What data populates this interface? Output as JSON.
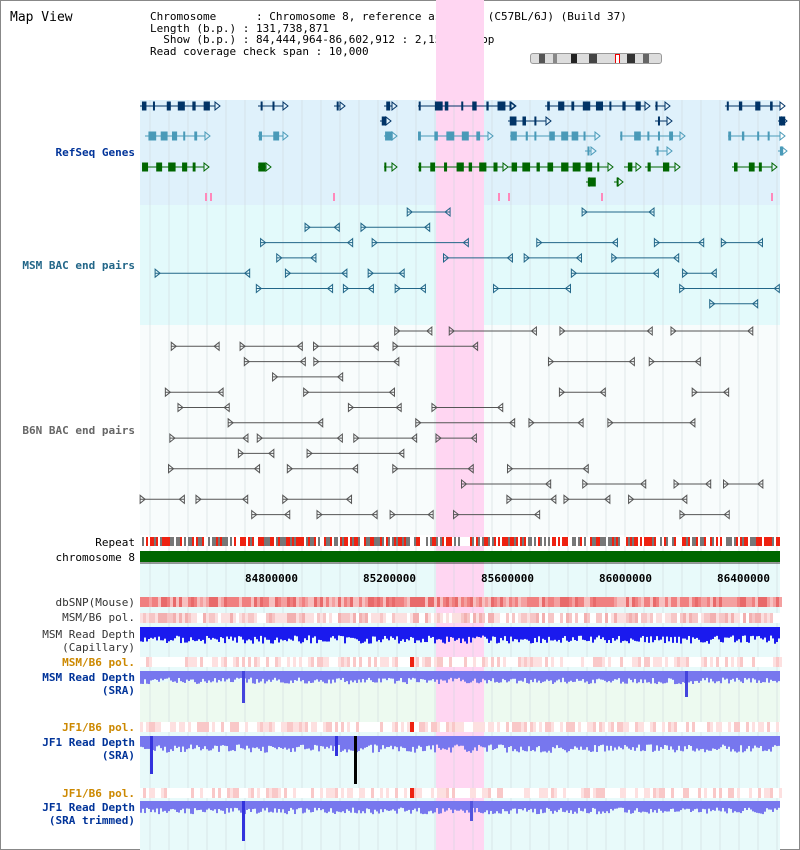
{
  "page": {
    "title": "Map View"
  },
  "info": {
    "chromosome_label": "Chromosome",
    "chromosome_value": "Chromosome 8, reference assembly (C57BL/6J) (Build 37)",
    "length_label": "Length (b.p.)",
    "length_value": "131,738,871",
    "show_label": "Show (b.p.)",
    "show_value": "84,444,964-86,602,912 : 2,157,949 bp",
    "coverage_label": "Read coverage check span",
    "coverage_value": "10,000"
  },
  "tracks": {
    "refseq": "RefSeq Genes",
    "msm_bac": "MSM BAC end pairs",
    "b6n_bac": "B6N BAC end pairs",
    "repeat": "Repeat",
    "chromosome": "chromosome 8",
    "dbsnp": "dbSNP(Mouse)",
    "msm_b6_pol_gray": "MSM/B6 pol.",
    "msm_depth_cap_1": "MSM Read Depth",
    "msm_depth_cap_2": "(Capillary)",
    "msm_b6_pol": "MSM/B6 pol.",
    "msm_depth_sra_1": "MSM Read Depth",
    "msm_depth_sra_2": "(SRA)",
    "jf1_b6_pol_1": "JF1/B6 pol.",
    "jf1_depth_sra_1": "JF1 Read Depth",
    "jf1_depth_sra_2": "(SRA)",
    "jf1_b6_pol_2": "JF1/B6 pol.",
    "jf1_depth_trim_1": "JF1 Read Depth",
    "jf1_depth_trim_2": "(SRA trimmed)"
  },
  "axis": {
    "ticks": [
      "84800000",
      "85200000",
      "85600000",
      "86000000",
      "86400000"
    ]
  },
  "colors": {
    "refseq_navy": "#003366",
    "refseq_teal": "#4a9ab8",
    "refseq_green": "#006600",
    "msm_bac": "#226688",
    "b6n_bac": "#555555",
    "highlight": "#ffd6f2",
    "chromosome_bar": "#006600",
    "capillary_depth": "#1a1aee",
    "sra_depth": "#7777ee",
    "msm_label": "#003399",
    "pol_label": "#cc8800"
  }
}
